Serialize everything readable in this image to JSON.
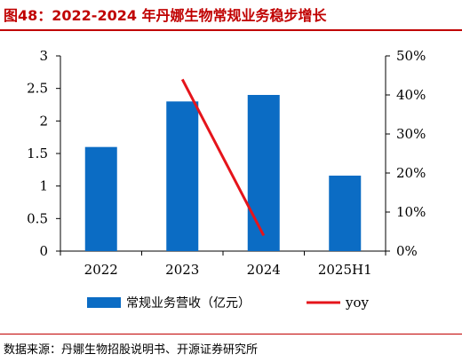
{
  "title": "图48：2022-2024 年丹娜生物常规业务稳步增长",
  "source": "数据来源：丹娜生物招股说明书、开源证券研究所",
  "colors": {
    "title": "#c00000",
    "bar": "#0b6cc4",
    "line": "#e5141b"
  },
  "chart_data": {
    "type": "bar",
    "categories": [
      "2022",
      "2023",
      "2024",
      "2025H1"
    ],
    "series": [
      {
        "name": "常规业务营收（亿元）",
        "type": "bar",
        "axis": "left",
        "values": [
          1.6,
          2.3,
          2.4,
          1.16
        ]
      },
      {
        "name": "yoy",
        "type": "line",
        "axis": "right",
        "values": [
          null,
          0.44,
          0.04,
          null
        ]
      }
    ],
    "y_left": {
      "min": 0,
      "max": 3,
      "ticks": [
        0,
        0.5,
        1,
        1.5,
        2,
        2.5,
        3
      ],
      "tick_labels": [
        "0",
        "0.5",
        "1",
        "1.5",
        "2",
        "2.5",
        "3"
      ]
    },
    "y_right": {
      "min": 0,
      "max": 0.5,
      "ticks": [
        0,
        0.1,
        0.2,
        0.3,
        0.4,
        0.5
      ],
      "tick_labels": [
        "0%",
        "10%",
        "20%",
        "30%",
        "40%",
        "50%"
      ]
    },
    "grid": false,
    "legend_position": "bottom"
  }
}
